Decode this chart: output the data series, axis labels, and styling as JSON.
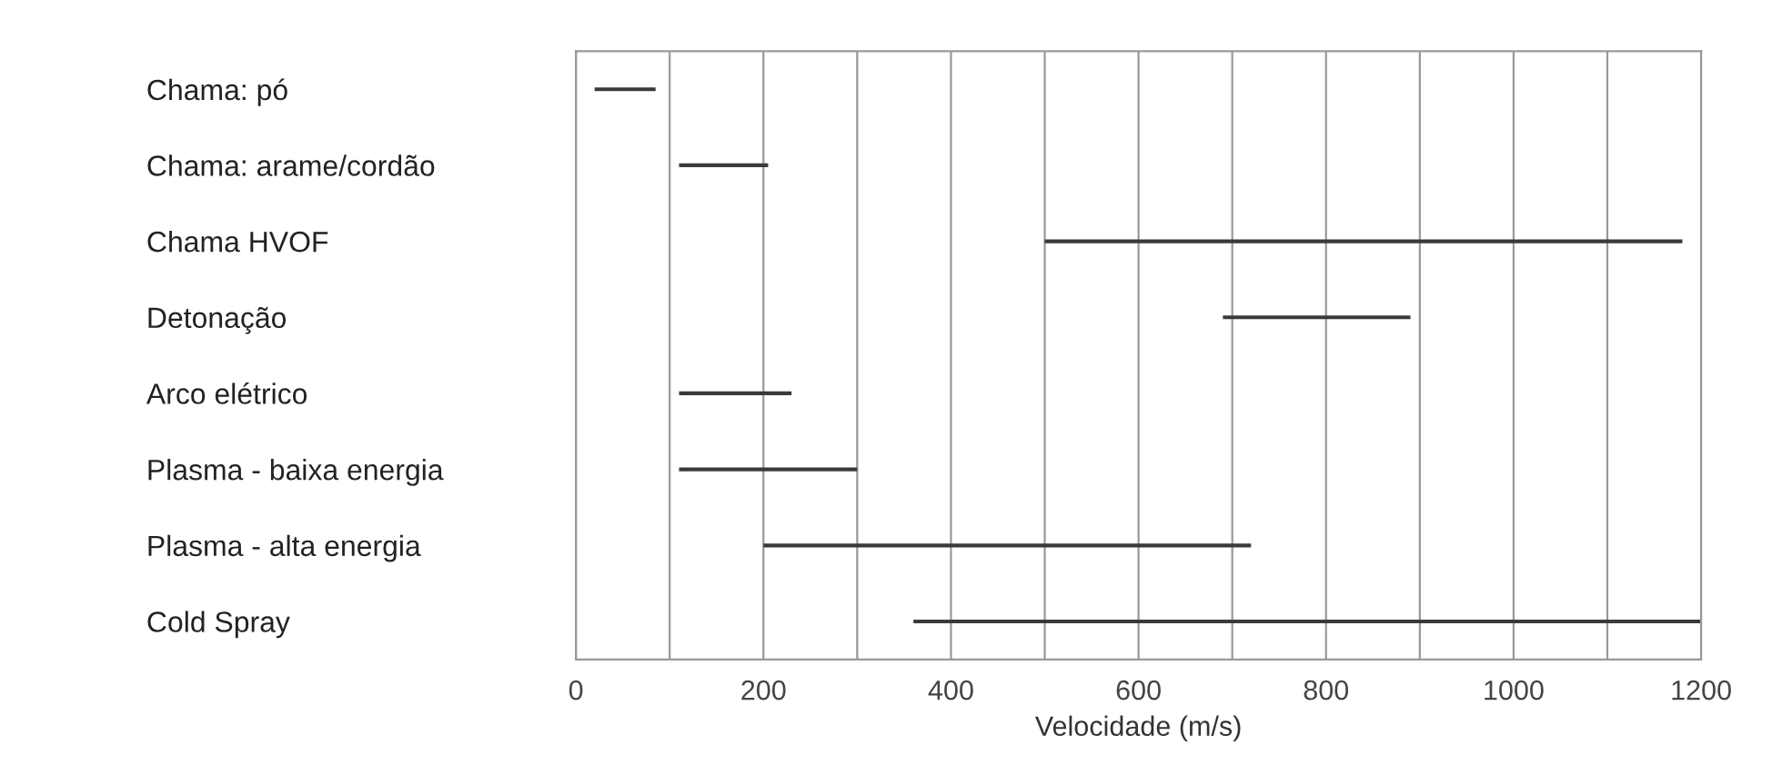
{
  "chart_data": {
    "type": "bar",
    "orientation": "horizontal",
    "xlabel": "Velocidade (m/s)",
    "categories": [
      "Chama: pó",
      "Chama: arame/cordão",
      "Chama HVOF",
      "Detonação",
      "Arco elétrico",
      "Plasma - baixa energia",
      "Plasma - alta energia",
      "Cold Spray"
    ],
    "base": [
      20,
      110,
      500,
      690,
      110,
      110,
      200,
      360
    ],
    "values": [
      65,
      95,
      680,
      200,
      120,
      190,
      520,
      840
    ],
    "color": "#3a3a3a",
    "xlim": [
      0,
      1200
    ],
    "xticks": [
      0,
      {
        "value": 100,
        "label": null
      },
      200,
      {
        "value": 300,
        "label": null
      },
      400,
      {
        "value": 500,
        "label": null
      },
      600,
      {
        "value": 700,
        "label": null
      },
      800,
      {
        "value": 900,
        "label": null
      },
      1000,
      {
        "value": 1100,
        "label": null
      },
      1200
    ],
    "grid": "x"
  }
}
